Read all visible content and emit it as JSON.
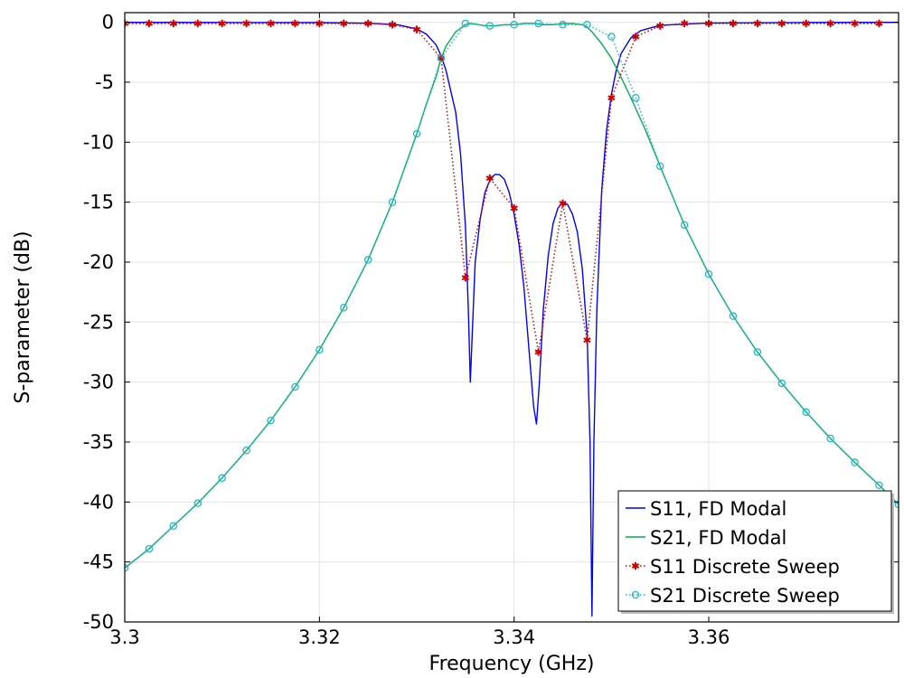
{
  "chart_data": {
    "type": "line",
    "title": "",
    "xlabel": "Frequency (GHz)",
    "ylabel": "S-parameter (dB)",
    "xlim": [
      3.3,
      3.3795
    ],
    "ylim": [
      -50,
      0.8
    ],
    "x_ticks": [
      3.3,
      3.32,
      3.34,
      3.36
    ],
    "x_tick_labels": [
      "3.3",
      "3.32",
      "3.34",
      "3.36"
    ],
    "y_ticks": [
      0,
      -5,
      -10,
      -15,
      -20,
      -25,
      -30,
      -35,
      -40,
      -45,
      -50
    ],
    "y_tick_labels": [
      "0",
      "-5",
      "-10",
      "-15",
      "-20",
      "-25",
      "-30",
      "-35",
      "-40",
      "-45",
      "-50"
    ],
    "grid": true,
    "legend_position": "bottom-right",
    "series": [
      {
        "name": "S11, FD Modal",
        "color": "#0000ff",
        "style": "solid",
        "marker": "none",
        "x": [
          3.3,
          3.31,
          3.32,
          3.325,
          3.328,
          3.33,
          3.331,
          3.332,
          3.3325,
          3.333,
          3.334,
          3.3345,
          3.335,
          3.3353,
          3.3355,
          3.3358,
          3.336,
          3.3365,
          3.337,
          3.3375,
          3.338,
          3.3385,
          3.339,
          3.3395,
          3.34,
          3.3405,
          3.341,
          3.3415,
          3.342,
          3.3423,
          3.3426,
          3.343,
          3.3435,
          3.344,
          3.3445,
          3.345,
          3.3455,
          3.346,
          3.3465,
          3.347,
          3.3475,
          3.3478,
          3.348,
          3.3482,
          3.3485,
          3.349,
          3.3495,
          3.35,
          3.3505,
          3.351,
          3.352,
          3.353,
          3.355,
          3.36,
          3.37,
          3.3795
        ],
        "y": [
          -0.01,
          -0.02,
          -0.03,
          -0.08,
          -0.2,
          -0.55,
          -1.0,
          -1.9,
          -2.8,
          -4.0,
          -7.5,
          -11.0,
          -17.0,
          -24.0,
          -30.0,
          -24.0,
          -20.0,
          -16.5,
          -14.2,
          -13.2,
          -12.7,
          -12.7,
          -13.1,
          -14.2,
          -16.0,
          -18.5,
          -22.0,
          -27.0,
          -32.0,
          -33.5,
          -30.0,
          -24.0,
          -19.5,
          -16.8,
          -15.5,
          -15.0,
          -15.2,
          -16.0,
          -17.5,
          -20.5,
          -26.0,
          -35.0,
          -49.5,
          -35.0,
          -24.0,
          -14.0,
          -9.0,
          -6.0,
          -4.0,
          -2.6,
          -1.3,
          -0.7,
          -0.25,
          -0.06,
          -0.02,
          -0.01
        ]
      },
      {
        "name": "S21, FD Modal",
        "color": "#00b050",
        "style": "solid",
        "marker": "none",
        "x": [
          3.3,
          3.3025,
          3.305,
          3.3075,
          3.31,
          3.3125,
          3.315,
          3.3175,
          3.32,
          3.3225,
          3.325,
          3.3275,
          3.33,
          3.331,
          3.332,
          3.3325,
          3.333,
          3.334,
          3.335,
          3.3355,
          3.336,
          3.337,
          3.338,
          3.339,
          3.34,
          3.341,
          3.342,
          3.343,
          3.344,
          3.345,
          3.346,
          3.347,
          3.3475,
          3.348,
          3.349,
          3.35,
          3.351,
          3.352,
          3.3525,
          3.3535,
          3.355,
          3.3575,
          3.36,
          3.3625,
          3.365,
          3.3675,
          3.37,
          3.3725,
          3.375,
          3.3775,
          3.3795
        ],
        "y": [
          -45.5,
          -43.9,
          -42.0,
          -40.1,
          -38.0,
          -35.7,
          -33.2,
          -30.4,
          -27.3,
          -23.8,
          -19.8,
          -15.0,
          -9.3,
          -6.8,
          -4.5,
          -3.0,
          -2.0,
          -0.8,
          -0.2,
          -0.1,
          -0.15,
          -0.3,
          -0.3,
          -0.2,
          -0.2,
          -0.1,
          -0.1,
          -0.2,
          -0.2,
          -0.1,
          -0.1,
          -0.2,
          -0.4,
          -0.8,
          -1.8,
          -3.0,
          -4.6,
          -6.3,
          -7.2,
          -9.0,
          -12.0,
          -16.9,
          -21.0,
          -24.5,
          -27.5,
          -30.1,
          -32.5,
          -34.7,
          -36.7,
          -38.6,
          -40.2
        ]
      },
      {
        "name": "S11 Discrete Sweep",
        "color": "#cc0000",
        "style": "dotted",
        "marker": "asterisk",
        "x": [
          3.3,
          3.3025,
          3.305,
          3.3075,
          3.31,
          3.3125,
          3.315,
          3.3175,
          3.32,
          3.3225,
          3.325,
          3.3275,
          3.33,
          3.3325,
          3.335,
          3.3375,
          3.34,
          3.3425,
          3.345,
          3.3475,
          3.35,
          3.3525,
          3.355,
          3.3575,
          3.36,
          3.3625,
          3.365,
          3.3675,
          3.37,
          3.3725,
          3.375,
          3.3775
        ],
        "y": [
          -0.1,
          -0.1,
          -0.1,
          -0.1,
          -0.1,
          -0.1,
          -0.1,
          -0.1,
          -0.1,
          -0.1,
          -0.1,
          -0.2,
          -0.6,
          -3.0,
          -21.3,
          -13.0,
          -15.5,
          -27.5,
          -15.1,
          -26.5,
          -6.3,
          -1.2,
          -0.3,
          -0.1,
          -0.1,
          -0.1,
          -0.1,
          -0.1,
          -0.1,
          -0.1,
          -0.1,
          -0.1
        ]
      },
      {
        "name": "S21 Discrete Sweep",
        "color": "#22b8c8",
        "style": "dotted",
        "marker": "circle",
        "x": [
          3.3,
          3.3025,
          3.305,
          3.3075,
          3.31,
          3.3125,
          3.315,
          3.3175,
          3.32,
          3.3225,
          3.325,
          3.3275,
          3.33,
          3.3325,
          3.335,
          3.3375,
          3.34,
          3.3425,
          3.345,
          3.3475,
          3.35,
          3.3525,
          3.355,
          3.3575,
          3.36,
          3.3625,
          3.365,
          3.3675,
          3.37,
          3.3725,
          3.375,
          3.3775,
          3.3795
        ],
        "y": [
          -45.5,
          -43.9,
          -42.0,
          -40.1,
          -38.0,
          -35.7,
          -33.2,
          -30.4,
          -27.3,
          -23.8,
          -19.8,
          -15.0,
          -9.3,
          -3.0,
          -0.1,
          -0.3,
          -0.2,
          -0.1,
          -0.2,
          -0.2,
          -1.2,
          -6.3,
          -12.0,
          -16.9,
          -21.0,
          -24.5,
          -27.5,
          -30.1,
          -32.5,
          -34.7,
          -36.7,
          -38.6,
          -40.2
        ]
      }
    ]
  }
}
